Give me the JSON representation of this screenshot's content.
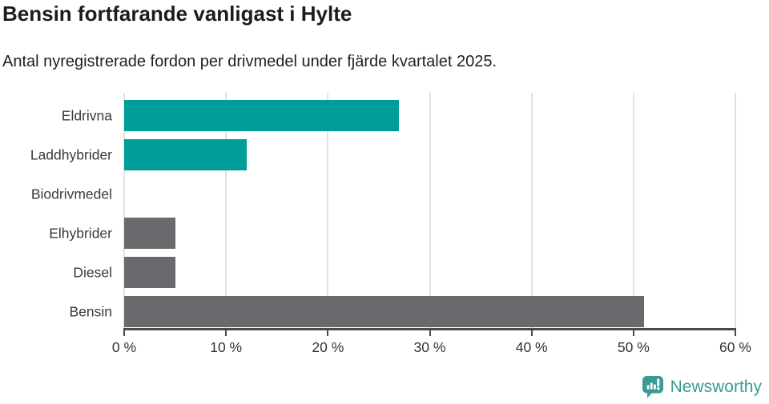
{
  "header": {
    "title": "Bensin fortfarande vanligast i Hylte",
    "subtitle": "Antal nyregistrerade fordon per drivmedel under fjärde kvartalet 2025."
  },
  "chart_data": {
    "type": "bar",
    "orientation": "horizontal",
    "title": "Bensin fortfarande vanligast i Hylte",
    "subtitle": "Antal nyregistrerade fordon per drivmedel under fjärde kvartalet 2025.",
    "categories": [
      "Eldrivna",
      "Laddhybrider",
      "Biodrivmedel",
      "Elhybrider",
      "Diesel",
      "Bensin"
    ],
    "values": [
      27,
      12,
      0,
      5,
      5,
      51
    ],
    "unit": "%",
    "xlim": [
      0,
      60
    ],
    "xticks": [
      0,
      10,
      20,
      30,
      40,
      50,
      60
    ],
    "xtick_labels": [
      "0 %",
      "10 %",
      "20 %",
      "30 %",
      "40 %",
      "50 %",
      "60 %"
    ],
    "bar_colors": [
      "#009e98",
      "#009e98",
      "#009e98",
      "#6a6a6e",
      "#6a6a6e",
      "#6a6a6e"
    ],
    "grid": "vertical",
    "legend": "none"
  },
  "colors": {
    "teal": "#009e98",
    "gray": "#6a6a6e",
    "gridline": "#e2e2e2",
    "axis": "#4a4a4c",
    "title_text": "#1c1c1c",
    "label_text": "#3a3a3a",
    "brand": "#3b9a94"
  },
  "footer": {
    "brand": "Newsworthy",
    "brand_icon": "newsworthy-speech-bubble-bar-chart-icon"
  }
}
